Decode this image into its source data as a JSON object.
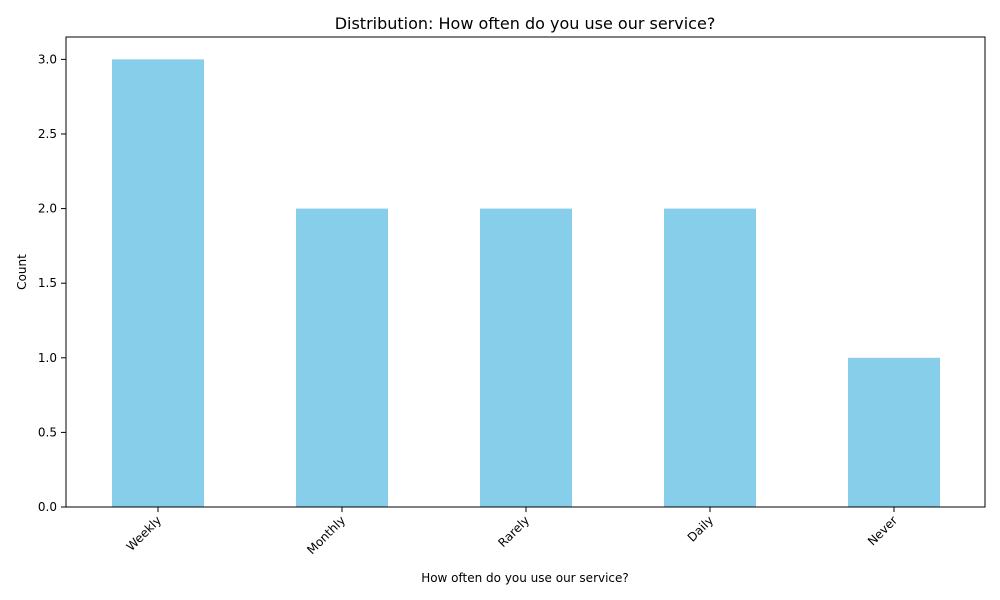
{
  "chart_data": {
    "type": "bar",
    "title": "Distribution: How often do you use our service?",
    "xlabel": "How often do you use our service?",
    "ylabel": "Count",
    "categories": [
      "Weekly",
      "Monthly",
      "Rarely",
      "Daily",
      "Never"
    ],
    "values": [
      3,
      2,
      2,
      2,
      1
    ],
    "ylim": [
      0,
      3.15
    ],
    "yticks": [
      "0.0",
      "0.5",
      "1.0",
      "1.5",
      "2.0",
      "2.5",
      "3.0"
    ],
    "bar_color": "#87CEEB",
    "grid": false,
    "legend": "none"
  }
}
